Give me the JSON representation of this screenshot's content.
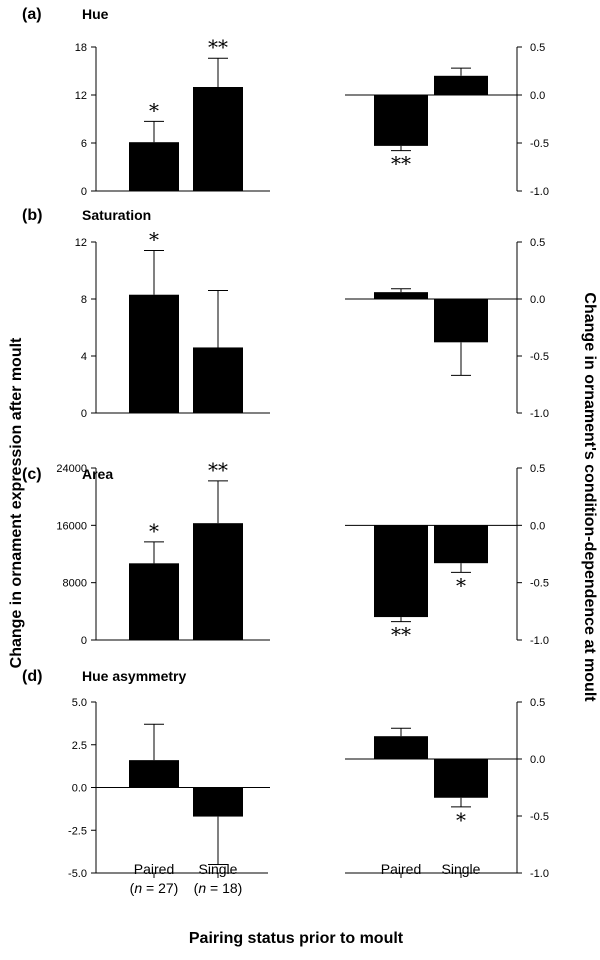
{
  "figure": {
    "y_left_label": "Change in ornament expression after moult",
    "y_right_label": "Change in ornament's condition-dependence at moult",
    "x_label": "Pairing status prior to moult",
    "groups": {
      "paired": "Paired",
      "single": "Single",
      "n_paired_pre": "(",
      "n_paired_n": "n",
      "n_paired_post": " = 27)",
      "n_single_pre": "(",
      "n_single_n": "n",
      "n_single_post": " = 18)"
    }
  },
  "chart_data": [
    {
      "type": "bar",
      "panel": "a",
      "letter": "(a)",
      "title": "Hue",
      "side": "left",
      "categories": [
        "Paired",
        "Single"
      ],
      "values": [
        6.1,
        13.0
      ],
      "errors": [
        2.6,
        3.6
      ],
      "significance": [
        "*",
        "**"
      ],
      "ylim": [
        0,
        18
      ],
      "yticks": [
        0,
        6,
        12,
        18
      ],
      "yticklabels": [
        "0",
        "6",
        "12",
        "18"
      ]
    },
    {
      "type": "bar",
      "panel": "a",
      "side": "right",
      "categories": [
        "Paired",
        "Single"
      ],
      "values": [
        -0.53,
        0.2
      ],
      "errors": [
        0.05,
        0.08
      ],
      "significance": [
        "**",
        ""
      ],
      "ylim": [
        -1.0,
        0.5
      ],
      "yticks": [
        0.5,
        0.0,
        -0.5,
        -1.0
      ],
      "yticklabels": [
        "0.5",
        "0.0",
        "-0.5",
        "-1.0"
      ]
    },
    {
      "type": "bar",
      "panel": "b",
      "letter": "(b)",
      "title": "Saturation",
      "side": "left",
      "categories": [
        "Paired",
        "Single"
      ],
      "values": [
        8.3,
        4.6
      ],
      "errors": [
        3.1,
        4.0
      ],
      "significance": [
        "*",
        ""
      ],
      "ylim": [
        0,
        12
      ],
      "yticks": [
        0,
        4,
        8,
        12
      ],
      "yticklabels": [
        "0",
        "4",
        "8",
        "12"
      ]
    },
    {
      "type": "bar",
      "panel": "b",
      "side": "right",
      "categories": [
        "Paired",
        "Single"
      ],
      "values": [
        0.06,
        -0.38
      ],
      "errors": [
        0.03,
        0.29
      ],
      "significance": [
        "",
        ""
      ],
      "ylim": [
        -1.0,
        0.5
      ],
      "yticks": [
        0.5,
        0.0,
        -0.5,
        -1.0
      ],
      "yticklabels": [
        "0.5",
        "0.0",
        "-0.5",
        "-1.0"
      ]
    },
    {
      "type": "bar",
      "panel": "c",
      "letter": "(c)",
      "title": "Area",
      "side": "left",
      "categories": [
        "Paired",
        "Single"
      ],
      "values": [
        10700,
        16300
      ],
      "errors": [
        3000,
        5900
      ],
      "significance": [
        "*",
        "**"
      ],
      "ylim": [
        0,
        24000
      ],
      "yticks": [
        0,
        8000,
        16000,
        24000
      ],
      "yticklabels": [
        "0",
        "8000",
        "16000",
        "24000"
      ]
    },
    {
      "type": "bar",
      "panel": "c",
      "side": "right",
      "categories": [
        "Paired",
        "Single"
      ],
      "values": [
        -0.8,
        -0.33
      ],
      "errors": [
        0.04,
        0.08
      ],
      "significance": [
        "**",
        "*"
      ],
      "ylim": [
        -1.0,
        0.5
      ],
      "yticks": [
        0.5,
        0.0,
        -0.5,
        -1.0
      ],
      "yticklabels": [
        "0.5",
        "0.0",
        "-0.5",
        "-1.0"
      ]
    },
    {
      "type": "bar",
      "panel": "d",
      "letter": "(d)",
      "title": "Hue asymmetry",
      "side": "left",
      "categories": [
        "Paired",
        "Single"
      ],
      "values": [
        1.6,
        -1.7
      ],
      "errors": [
        2.1,
        2.8
      ],
      "significance": [
        "",
        ""
      ],
      "ylim": [
        -5.0,
        5.0
      ],
      "yticks": [
        5.0,
        2.5,
        0.0,
        -2.5,
        -5.0
      ],
      "yticklabels": [
        "5.0",
        "2.5",
        "0.0",
        "-2.5",
        "-5.0"
      ]
    },
    {
      "type": "bar",
      "panel": "d",
      "side": "right",
      "categories": [
        "Paired",
        "Single"
      ],
      "values": [
        0.2,
        -0.34
      ],
      "errors": [
        0.07,
        0.08
      ],
      "significance": [
        "",
        "*"
      ],
      "ylim": [
        -1.0,
        0.5
      ],
      "yticks": [
        0.5,
        0.0,
        -0.5,
        -1.0
      ],
      "yticklabels": [
        "0.5",
        "0.0",
        "-0.5",
        "-1.0"
      ]
    }
  ]
}
